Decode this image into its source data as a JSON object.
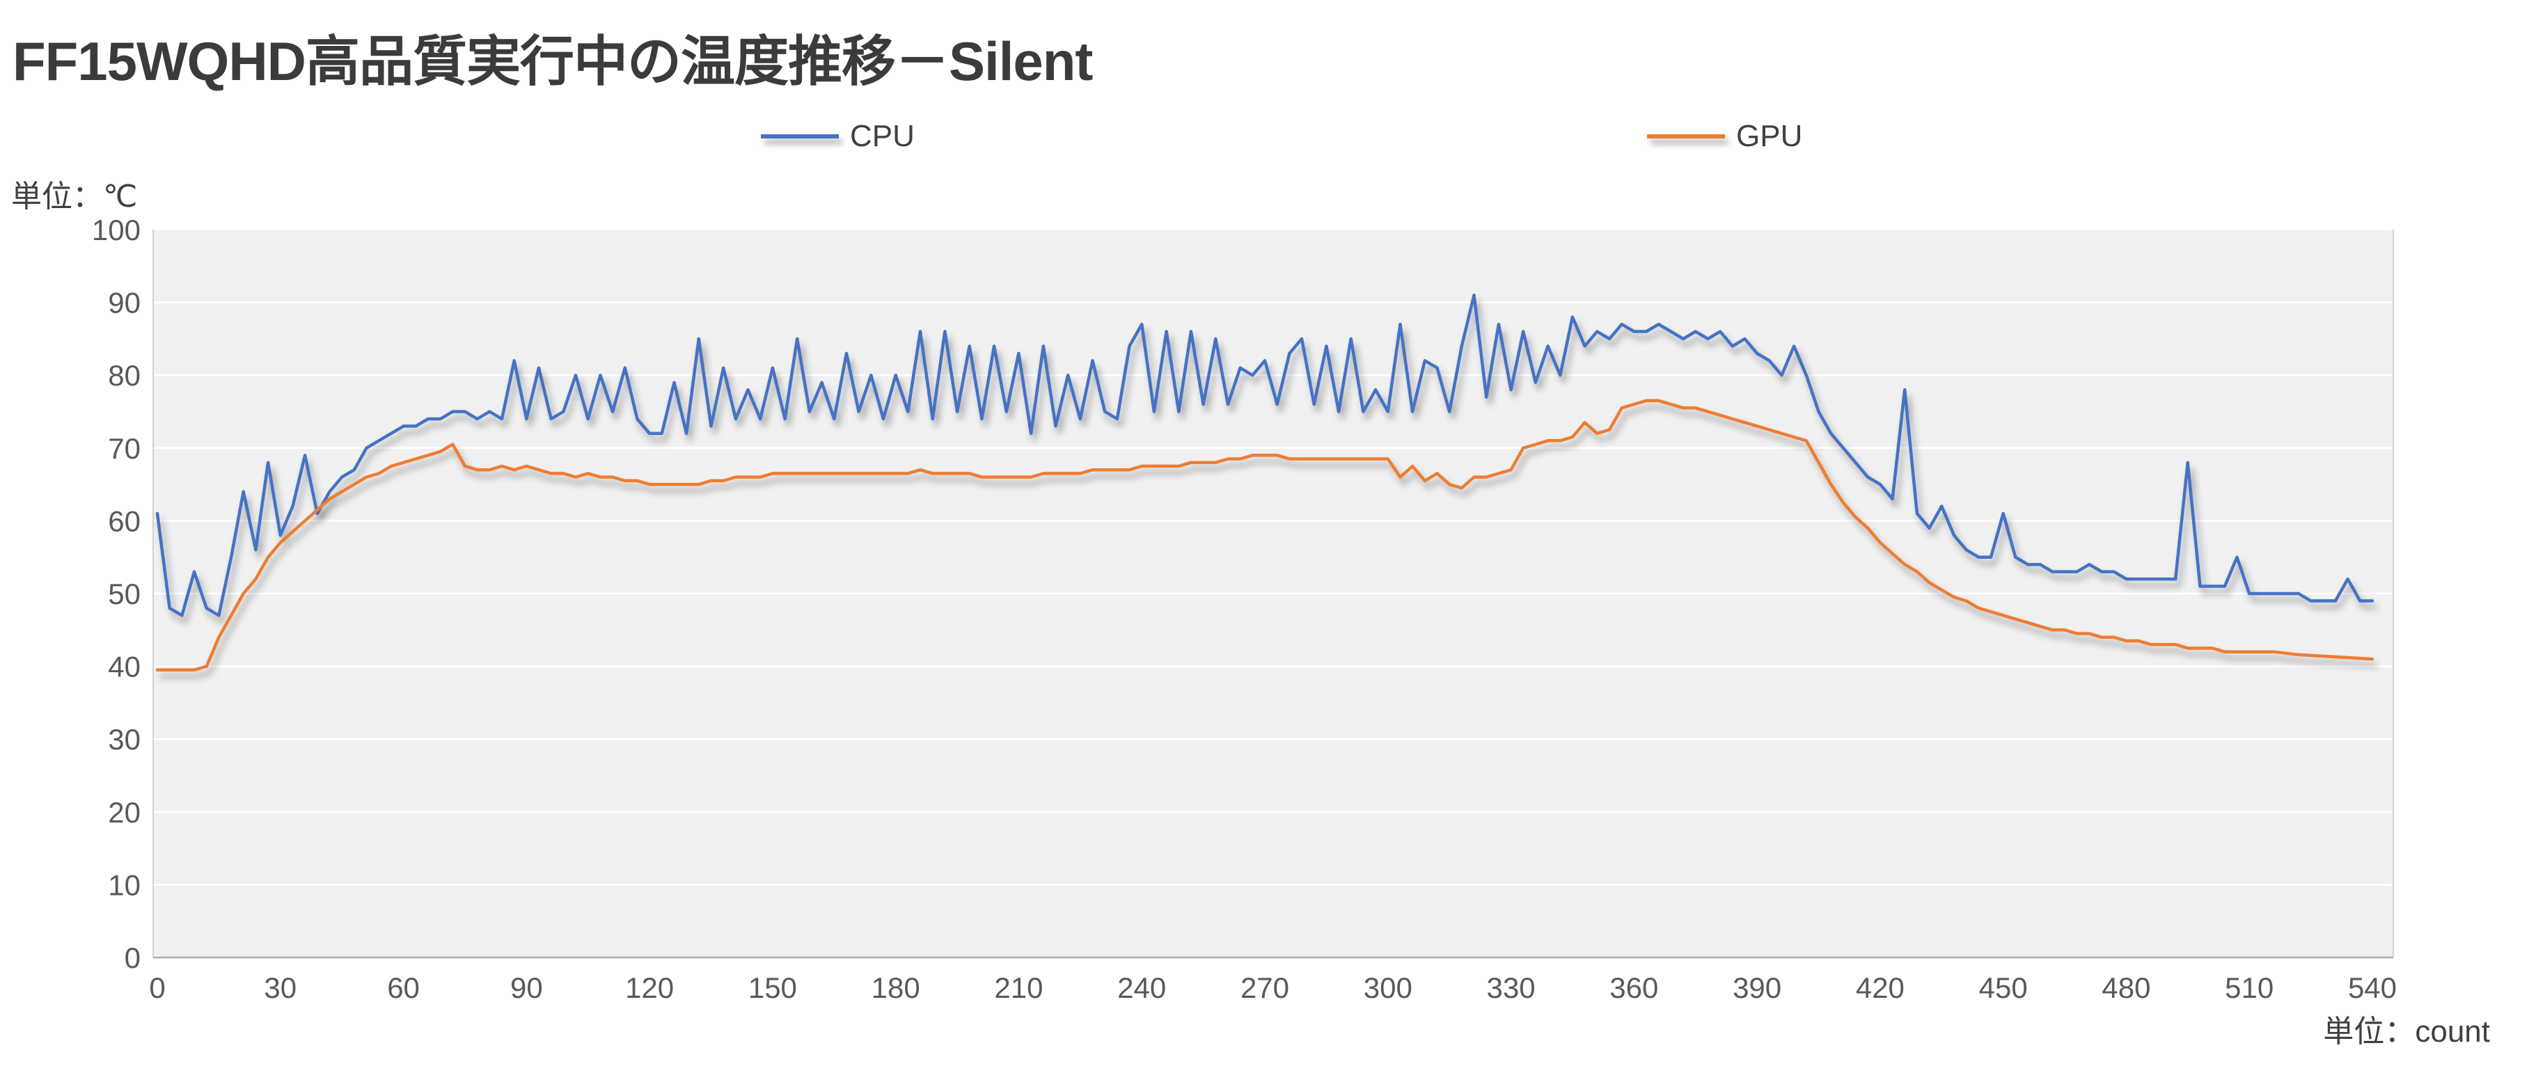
{
  "title": "FF15WQHD高品質実行中の温度推移－Silent",
  "legend": {
    "cpu": "CPU",
    "gpu": "GPU"
  },
  "units": {
    "y_label": "単位：℃",
    "x_label": "単位：count"
  },
  "colors": {
    "cpu": "#4472C4",
    "gpu": "#ED7D31",
    "plot_bg": "#F0F0F0",
    "gridline": "#FFFFFF",
    "axis_line": "#ADADAD",
    "plot_border": "#D2D2D2",
    "tick_text": "#595959",
    "title_text": "#3B3B3B"
  },
  "chart_data": {
    "type": "line",
    "title": "FF15WQHD高品質実行中の温度推移－Silent",
    "xlabel": "単位：count",
    "ylabel": "単位：℃",
    "xlim": [
      0,
      540
    ],
    "ylim": [
      0,
      100
    ],
    "xticks": [
      0,
      30,
      60,
      90,
      120,
      150,
      180,
      210,
      240,
      270,
      300,
      330,
      360,
      390,
      420,
      450,
      480,
      510,
      540
    ],
    "yticks": [
      0,
      10,
      20,
      30,
      40,
      50,
      60,
      70,
      80,
      90,
      100
    ],
    "x_start": 0,
    "x_step": 3,
    "grid": "horizontal",
    "legend_position": "top",
    "series": [
      {
        "name": "CPU",
        "color": "#4472C4",
        "values": [
          61,
          48,
          47,
          53,
          48,
          47,
          55,
          64,
          56,
          68,
          58,
          62,
          69,
          61,
          64,
          66,
          67,
          70,
          71,
          72,
          73,
          73,
          74,
          74,
          75,
          75,
          74,
          75,
          74,
          82,
          74,
          81,
          74,
          75,
          80,
          74,
          80,
          75,
          81,
          74,
          72,
          72,
          79,
          72,
          85,
          73,
          81,
          74,
          78,
          74,
          81,
          74,
          85,
          75,
          79,
          74,
          83,
          75,
          80,
          74,
          80,
          75,
          86,
          74,
          86,
          75,
          84,
          74,
          84,
          75,
          83,
          72,
          84,
          73,
          80,
          74,
          82,
          75,
          74,
          84,
          87,
          75,
          86,
          75,
          86,
          76,
          85,
          76,
          81,
          80,
          82,
          76,
          83,
          85,
          76,
          84,
          75,
          85,
          75,
          78,
          75,
          87,
          75,
          82,
          81,
          75,
          84,
          91,
          77,
          87,
          78,
          86,
          79,
          84,
          80,
          88,
          84,
          86,
          85,
          87,
          86,
          86,
          87,
          86,
          85,
          86,
          85,
          86,
          84,
          85,
          83,
          82,
          80,
          84,
          80,
          75,
          72,
          70,
          68,
          66,
          65,
          63,
          78,
          61,
          59,
          62,
          58,
          56,
          55,
          55,
          61,
          55,
          54,
          54,
          53,
          53,
          53,
          54,
          53,
          53,
          52,
          52,
          52,
          52,
          52,
          68,
          51,
          51,
          51,
          55,
          50,
          50,
          50,
          50,
          50,
          49,
          49,
          49,
          52,
          49,
          49
        ]
      },
      {
        "name": "GPU",
        "color": "#ED7D31",
        "values": [
          39.5,
          39.5,
          39.5,
          39.5,
          40,
          44,
          47,
          50,
          52,
          55,
          57,
          58.5,
          60,
          61.5,
          63,
          64,
          65,
          66,
          66.5,
          67.5,
          68,
          68.5,
          69,
          69.5,
          70.5,
          67.5,
          67,
          67,
          67.5,
          67,
          67.5,
          67,
          66.5,
          66.5,
          66,
          66.5,
          66,
          66,
          65.5,
          65.5,
          65,
          65,
          65,
          65,
          65,
          65.5,
          65.5,
          66,
          66,
          66,
          66.5,
          66.5,
          66.5,
          66.5,
          66.5,
          66.5,
          66.5,
          66.5,
          66.5,
          66.5,
          66.5,
          66.5,
          67,
          66.5,
          66.5,
          66.5,
          66.5,
          66,
          66,
          66,
          66,
          66,
          66.5,
          66.5,
          66.5,
          66.5,
          67,
          67,
          67,
          67,
          67.5,
          67.5,
          67.5,
          67.5,
          68,
          68,
          68,
          68.5,
          68.5,
          69,
          69,
          69,
          68.5,
          68.5,
          68.5,
          68.5,
          68.5,
          68.5,
          68.5,
          68.5,
          68.5,
          66,
          67.5,
          65.5,
          66.5,
          65,
          64.5,
          66,
          66,
          66.5,
          67,
          70,
          70.5,
          71,
          71,
          71.5,
          73.5,
          72,
          72.5,
          75.5,
          76,
          76.5,
          76.5,
          76,
          75.5,
          75.5,
          75,
          74.5,
          74,
          73.5,
          73,
          72.5,
          72,
          71.5,
          71,
          68,
          65,
          62.5,
          60.5,
          59,
          57,
          55.5,
          54,
          53,
          51.5,
          50.5,
          49.5,
          49,
          48,
          47.5,
          47,
          46.5,
          46,
          45.5,
          45,
          45,
          44.5,
          44.5,
          44,
          44,
          43.5,
          43.5,
          43,
          43,
          43,
          42.5,
          42.5,
          42.5,
          42,
          42,
          42,
          42,
          42,
          41.8,
          41.6,
          41.5,
          41.4,
          41.3,
          41.2,
          41.1,
          41
        ]
      }
    ]
  }
}
